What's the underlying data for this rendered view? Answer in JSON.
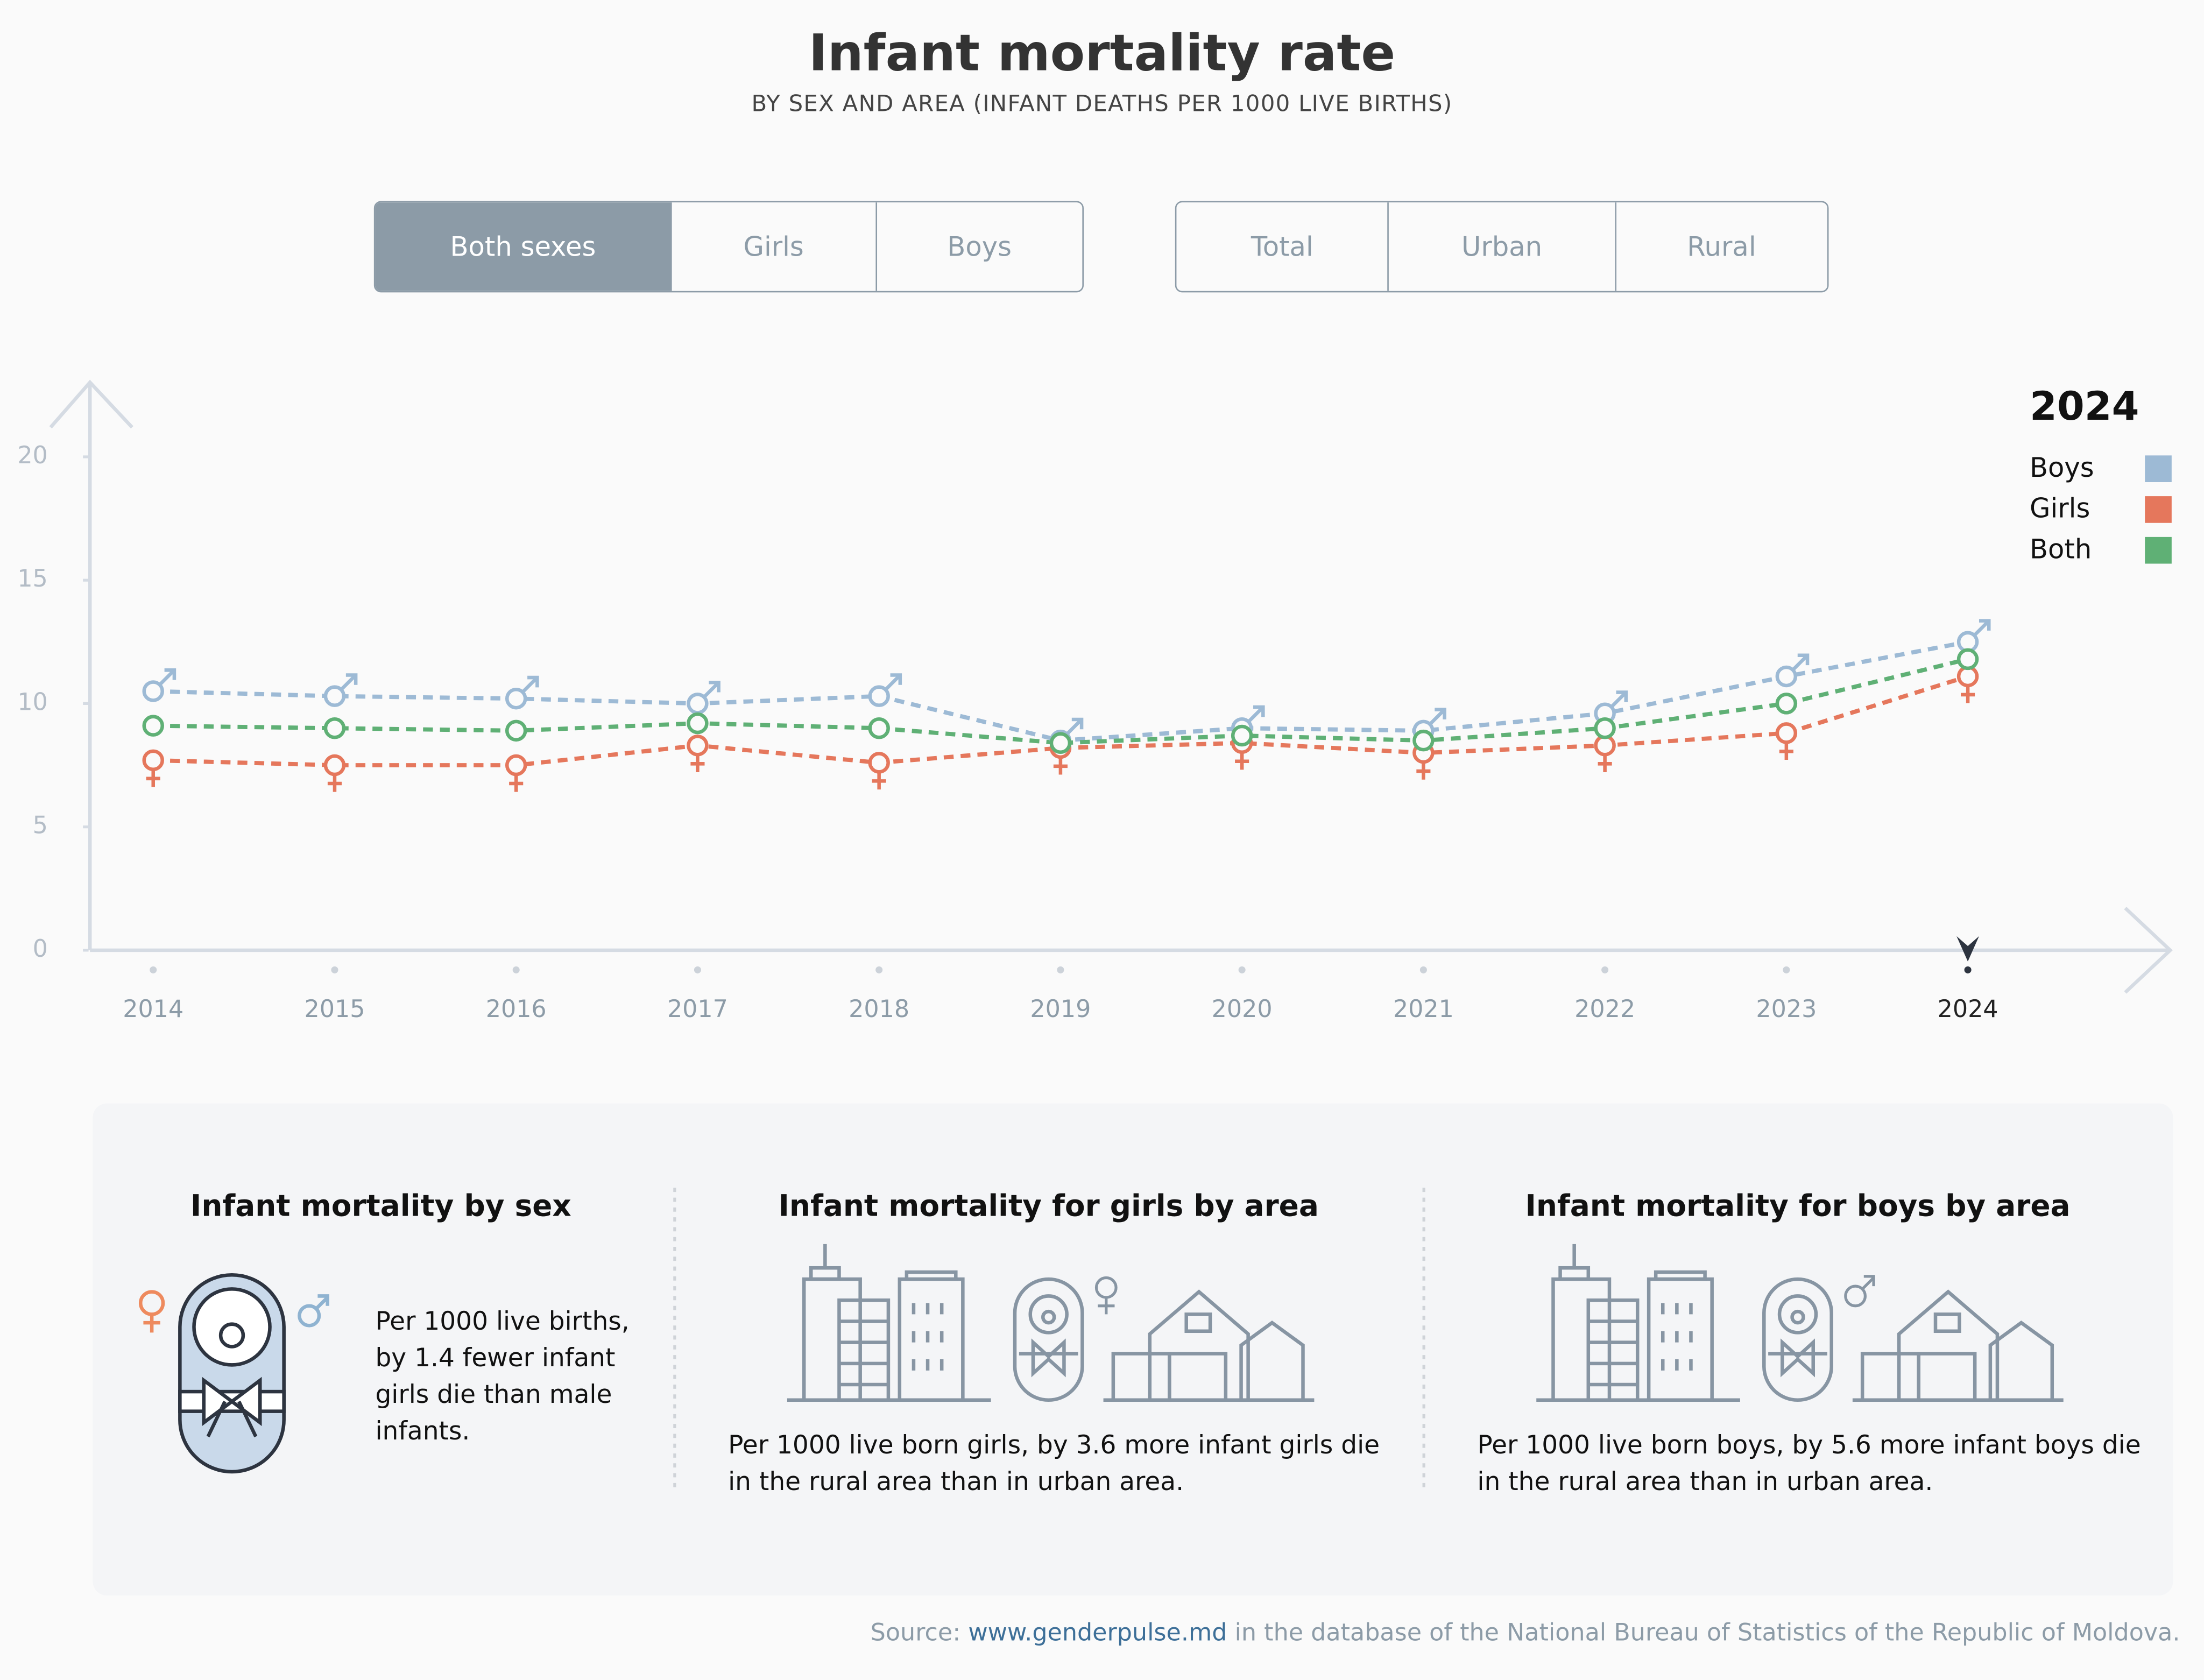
{
  "chart_data": {
    "type": "line",
    "title": "Infant mortality rate",
    "subtitle": "BY SEX AND AREA (INFANT DEATHS PER 1000 LIVE BIRTHS)",
    "categories": [
      "2014",
      "2015",
      "2016",
      "2017",
      "2018",
      "2019",
      "2020",
      "2021",
      "2022",
      "2023",
      "2024"
    ],
    "series": [
      {
        "name": "Boys",
        "color": "#9dbad5",
        "values": [
          10.5,
          10.3,
          10.2,
          10.0,
          10.3,
          8.5,
          9.0,
          8.9,
          9.6,
          11.1,
          12.5
        ]
      },
      {
        "name": "Girls",
        "color": "#e5775c",
        "values": [
          7.7,
          7.5,
          7.5,
          8.3,
          7.6,
          8.2,
          8.4,
          8.0,
          8.3,
          8.8,
          11.1
        ]
      },
      {
        "name": "Both",
        "color": "#5fb075",
        "values": [
          9.1,
          9.0,
          8.9,
          9.2,
          9.0,
          8.4,
          8.7,
          8.5,
          9.0,
          10.0,
          11.8
        ]
      }
    ],
    "ylim": [
      0,
      20
    ],
    "yticks": [
      0,
      5,
      10,
      15,
      20
    ],
    "legend_title": "2024",
    "legend_position": "upper right",
    "grid": false
  },
  "controls": {
    "sex": [
      "Both sexes",
      "Girls",
      "Boys"
    ],
    "area": [
      "Total",
      "Urban",
      "Rural"
    ]
  },
  "panels": [
    {
      "title": "Infant mortality by sex",
      "body": "Per 1000 live births, by 1.4 fewer infant girls die than male infants."
    },
    {
      "title": "Infant mortality for girls by area",
      "body": "Per 1000 live born girls, by 3.6 more infant girls die in the rural area than in urban area."
    },
    {
      "title": "Infant mortality for boys by area",
      "body": "Per 1000 live born boys, by 5.6 more infant boys die in the rural area than in urban area."
    }
  ],
  "source": {
    "prefix": "Source:",
    "link": "www.genderpulse.md",
    "suffix": "in the database of the National Bureau of Statistics of the Republic of Moldova."
  }
}
